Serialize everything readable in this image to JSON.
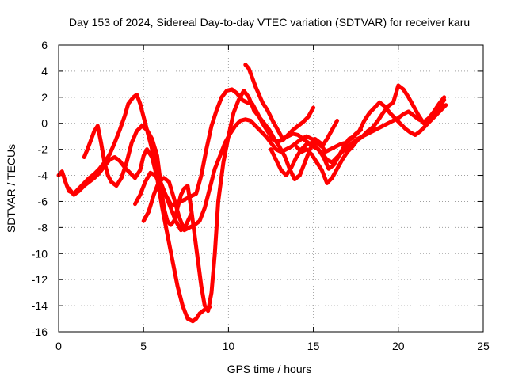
{
  "chart_data": {
    "type": "scatter",
    "title": "Day 153 of 2024, Sidereal Day-to-day VTEC variation (SDTVAR) for receiver karu",
    "xlabel": "GPS time / hours",
    "ylabel": "SDTVAR / TECUs",
    "xlim": [
      0,
      25
    ],
    "ylim": [
      -16,
      6
    ],
    "xticks": [
      0,
      5,
      10,
      15,
      20,
      25
    ],
    "yticks": [
      -16,
      -14,
      -12,
      -10,
      -8,
      -6,
      -4,
      -2,
      0,
      2,
      4,
      6
    ],
    "grid": true,
    "marker": "plus",
    "color": "#ff0000",
    "series": [
      {
        "x": [
          0.0,
          0.2,
          0.4,
          0.6,
          0.9,
          1.2,
          1.5,
          1.8,
          2.1,
          2.4,
          2.7,
          3.0,
          3.3,
          3.6,
          3.9,
          4.1,
          4.4,
          4.6,
          4.8,
          5.0,
          5.2,
          5.4,
          5.6,
          5.8,
          6.0,
          6.3,
          6.6,
          6.9,
          7.2,
          7.5,
          7.8
        ],
        "y": [
          -4.0,
          -3.7,
          -4.5,
          -5.2,
          -5.4,
          -5.0,
          -4.6,
          -4.2,
          -3.9,
          -3.5,
          -3.0,
          -2.4,
          -1.5,
          -0.5,
          0.6,
          1.5,
          2.0,
          2.2,
          1.5,
          0.5,
          -0.5,
          -1.5,
          -2.5,
          -3.5,
          -4.5,
          -5.5,
          -6.5,
          -7.5,
          -8.2,
          -7.8,
          -7.0
        ]
      },
      {
        "x": [
          0.6,
          0.9,
          1.2,
          1.5,
          1.8,
          2.1,
          2.4,
          2.7,
          3.0,
          3.3,
          3.6,
          3.9,
          4.2,
          4.5,
          4.8,
          5.0,
          5.2,
          5.5,
          5.8,
          6.1,
          6.4,
          6.7,
          7.0,
          7.3,
          7.6,
          7.9,
          8.1,
          8.3,
          8.6,
          8.9
        ],
        "y": [
          -5.0,
          -5.5,
          -5.2,
          -4.8,
          -4.5,
          -4.2,
          -3.8,
          -3.3,
          -2.8,
          -2.6,
          -2.9,
          -3.4,
          -3.8,
          -4.2,
          -3.6,
          -2.5,
          -2.0,
          -2.6,
          -4.2,
          -6.5,
          -8.5,
          -10.5,
          -12.5,
          -14.0,
          -15.0,
          -15.2,
          -15.0,
          -14.6,
          -14.3,
          -14.1
        ]
      },
      {
        "x": [
          1.5,
          1.7,
          1.9,
          2.1,
          2.3,
          2.5,
          2.7,
          2.9,
          3.1,
          3.4,
          3.7,
          4.0,
          4.3,
          4.6,
          4.9,
          5.2,
          5.5,
          5.8,
          6.0,
          6.2,
          6.4,
          6.6,
          6.8,
          7.0,
          7.2,
          7.4,
          7.6,
          7.8,
          8.0,
          8.2,
          8.4,
          8.6,
          8.8,
          9.0,
          9.2,
          9.4,
          9.7,
          10.0,
          10.3,
          10.6,
          10.9,
          11.2,
          11.5,
          11.8,
          12.1,
          12.4,
          12.7,
          13.0,
          13.3,
          13.6,
          13.9,
          14.2,
          14.5,
          14.8,
          15.1,
          15.4,
          15.7,
          16.0,
          16.3,
          16.6,
          16.9,
          17.2,
          17.5,
          17.8
        ],
        "y": [
          -2.6,
          -2.0,
          -1.3,
          -0.6,
          -0.2,
          -1.5,
          -3.0,
          -4.0,
          -4.5,
          -4.8,
          -4.2,
          -3.0,
          -1.5,
          -0.6,
          -0.2,
          -0.5,
          -1.2,
          -2.5,
          -4.5,
          -6.5,
          -7.5,
          -7.8,
          -7.5,
          -6.5,
          -5.5,
          -5.0,
          -4.8,
          -6.5,
          -8.5,
          -10.5,
          -12.5,
          -14.0,
          -14.4,
          -13.0,
          -10.0,
          -6.0,
          -3.0,
          -1.0,
          0.8,
          1.8,
          2.5,
          2.0,
          1.0,
          0.5,
          0.0,
          -0.5,
          -1.2,
          -1.8,
          -2.5,
          -3.5,
          -4.3,
          -4.0,
          -3.0,
          -2.0,
          -1.2,
          -1.5,
          -2.2,
          -2.0,
          -1.8,
          -1.6,
          -1.5,
          -1.2,
          -0.8,
          -0.5
        ]
      },
      {
        "x": [
          4.5,
          4.8,
          5.1,
          5.4,
          5.7,
          6.0,
          6.3,
          6.6,
          6.9,
          7.2,
          7.5,
          7.8,
          8.1,
          8.4,
          8.7,
          9.0,
          9.3,
          9.6,
          9.9,
          10.2,
          10.5,
          10.8,
          11.1,
          11.4,
          11.7,
          12.0,
          12.3,
          12.6,
          12.9,
          13.2,
          13.5,
          13.8,
          14.1,
          14.4,
          14.7,
          15.0
        ],
        "y": [
          -6.2,
          -5.5,
          -4.5,
          -3.8,
          -4.0,
          -4.8,
          -5.5,
          -6.2,
          -6.3,
          -6.0,
          -5.8,
          -5.6,
          -5.4,
          -4.0,
          -2.0,
          -0.2,
          1.0,
          2.0,
          2.5,
          2.6,
          2.3,
          1.8,
          1.6,
          1.5,
          0.8,
          0.0,
          -0.6,
          -1.2,
          -1.4,
          -1.3,
          -0.9,
          -0.5,
          -0.2,
          0.1,
          0.5,
          1.2
        ]
      },
      {
        "x": [
          5.0,
          5.3,
          5.6,
          5.9,
          6.2,
          6.5,
          6.8,
          7.1,
          7.4,
          7.7,
          8.0,
          8.3,
          8.6,
          8.9,
          9.2,
          9.5,
          9.8,
          10.1,
          10.4,
          10.7,
          11.0,
          11.3,
          11.6,
          11.9,
          12.2,
          12.5,
          12.8,
          13.1,
          13.4,
          13.7,
          14.0,
          14.3,
          14.6,
          14.9,
          15.2,
          15.5,
          15.8,
          16.1,
          16.4
        ],
        "y": [
          -7.5,
          -6.8,
          -5.5,
          -4.5,
          -4.2,
          -4.5,
          -5.8,
          -7.2,
          -8.2,
          -8.0,
          -7.8,
          -7.5,
          -6.5,
          -5.0,
          -3.5,
          -2.5,
          -1.5,
          -0.8,
          -0.2,
          0.2,
          0.3,
          0.2,
          -0.2,
          -0.6,
          -1.0,
          -1.5,
          -2.0,
          -2.2,
          -2.0,
          -1.8,
          -1.5,
          -1.2,
          -1.0,
          -1.2,
          -1.5,
          -1.8,
          -1.2,
          -0.5,
          0.2
        ]
      },
      {
        "x": [
          11.0,
          11.2,
          11.4,
          11.6,
          11.8,
          12.0,
          12.3,
          12.6,
          12.9,
          13.2,
          13.5,
          13.8,
          14.1,
          14.4,
          14.7,
          15.0,
          15.3,
          15.6,
          15.9,
          16.2,
          16.5,
          16.8,
          17.1,
          17.4,
          17.7,
          18.0,
          18.3,
          18.6,
          18.9,
          19.2,
          19.5,
          19.8,
          20.1,
          20.4,
          20.7,
          21.0,
          21.3,
          21.6,
          21.9,
          22.2,
          22.5,
          22.8
        ],
        "y": [
          4.5,
          4.2,
          3.5,
          2.8,
          2.2,
          1.6,
          1.0,
          0.2,
          -0.5,
          -1.2,
          -1.0,
          -0.8,
          -0.9,
          -1.2,
          -1.5,
          -1.8,
          -2.0,
          -2.6,
          -3.5,
          -3.2,
          -2.5,
          -1.8,
          -1.2,
          -1.0,
          -0.6,
          0.2,
          0.8,
          1.2,
          1.6,
          1.3,
          0.8,
          0.4,
          0.0,
          -0.4,
          -0.7,
          -0.9,
          -0.6,
          -0.2,
          0.2,
          0.6,
          1.0,
          1.4
        ]
      },
      {
        "x": [
          14.0,
          14.3,
          14.6,
          14.9,
          15.2,
          15.5,
          15.8,
          16.1,
          16.4,
          16.7,
          17.0,
          17.3,
          17.6,
          17.9,
          18.2,
          18.5,
          18.8,
          19.1,
          19.4,
          19.7,
          20.0,
          20.3,
          20.6,
          20.9,
          21.2,
          21.5,
          21.8,
          22.1,
          22.4,
          22.7
        ],
        "y": [
          -1.8,
          -2.2,
          -2.0,
          -2.4,
          -3.0,
          -3.6,
          -4.6,
          -4.2,
          -3.5,
          -2.8,
          -2.2,
          -1.8,
          -1.3,
          -1.0,
          -0.6,
          -0.3,
          0.2,
          0.8,
          1.3,
          1.6,
          2.9,
          2.6,
          2.0,
          1.3,
          0.6,
          0.0,
          0.4,
          0.9,
          1.5,
          2.0
        ]
      },
      {
        "x": [
          12.5,
          12.8,
          13.1,
          13.4,
          13.7,
          14.0,
          14.3,
          14.6,
          14.9,
          15.2,
          15.5,
          15.8,
          16.1,
          16.4,
          16.7,
          17.0,
          17.3,
          17.6,
          17.9,
          18.2,
          18.5,
          18.8,
          19.1,
          19.4,
          19.7,
          20.0,
          20.3,
          20.6,
          20.9,
          21.2,
          21.5,
          21.8,
          22.1,
          22.4,
          22.7
        ],
        "y": [
          -2.0,
          -2.8,
          -3.6,
          -4.0,
          -3.4,
          -2.6,
          -2.0,
          -1.6,
          -1.5,
          -1.9,
          -2.3,
          -2.8,
          -3.0,
          -2.6,
          -2.2,
          -1.8,
          -1.5,
          -1.2,
          -1.0,
          -0.8,
          -0.6,
          -0.4,
          -0.2,
          0.0,
          0.2,
          0.4,
          0.7,
          0.9,
          0.6,
          0.3,
          0.1,
          0.4,
          0.8,
          1.2,
          1.8
        ]
      }
    ]
  }
}
